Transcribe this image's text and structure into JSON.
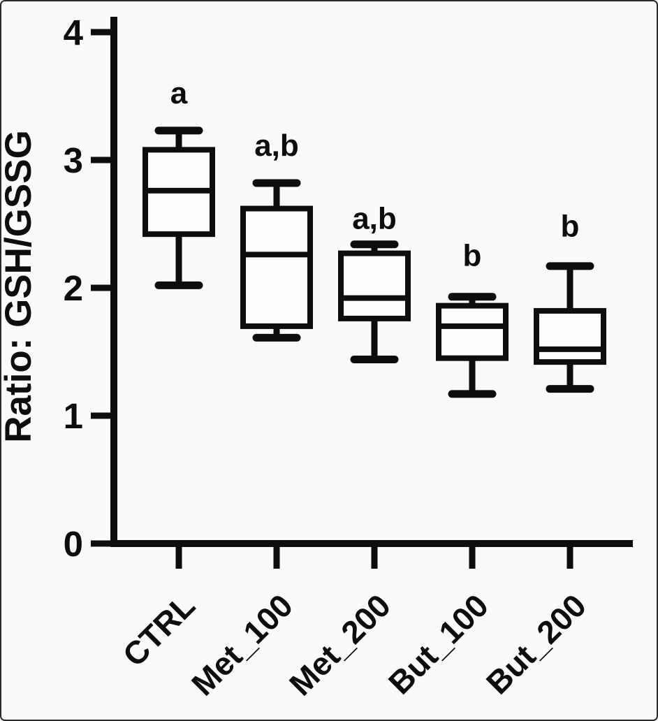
{
  "figure": {
    "background": "#f9fafb",
    "frame_border": "#2b2b2b",
    "ink_color": "#0d0d0d",
    "box_fill": "#fcfdfe"
  },
  "chart_data": {
    "type": "box",
    "title": "",
    "xlabel": "",
    "ylabel": "Ratio: GSH/GSSG",
    "ylim": [
      0,
      4
    ],
    "yticks": [
      "0",
      "1",
      "2",
      "3",
      "4"
    ],
    "grid": false,
    "legend": false,
    "categories": [
      "CTRL",
      "Met_100",
      "Met_200",
      "But_100",
      "But_200"
    ],
    "series": [
      {
        "name": "CTRL",
        "whisker_low": 2.02,
        "q1": 2.42,
        "median": 2.76,
        "q3": 3.08,
        "whisker_high": 3.23,
        "sig_label": "a",
        "sig_label_y": 3.53
      },
      {
        "name": "Met_100",
        "whisker_low": 1.61,
        "q1": 1.7,
        "median": 2.26,
        "q3": 2.62,
        "whisker_high": 2.82,
        "sig_label": "a,b",
        "sig_label_y": 3.12
      },
      {
        "name": "Met_200",
        "whisker_low": 1.44,
        "q1": 1.76,
        "median": 1.92,
        "q3": 2.27,
        "whisker_high": 2.34,
        "sig_label": "a,b",
        "sig_label_y": 2.55
      },
      {
        "name": "But_100",
        "whisker_low": 1.17,
        "q1": 1.45,
        "median": 1.7,
        "q3": 1.86,
        "whisker_high": 1.93,
        "sig_label": "b",
        "sig_label_y": 2.26
      },
      {
        "name": "But_200",
        "whisker_low": 1.21,
        "q1": 1.42,
        "median": 1.52,
        "q3": 1.82,
        "whisker_high": 2.17,
        "sig_label": "b",
        "sig_label_y": 2.49
      }
    ]
  }
}
